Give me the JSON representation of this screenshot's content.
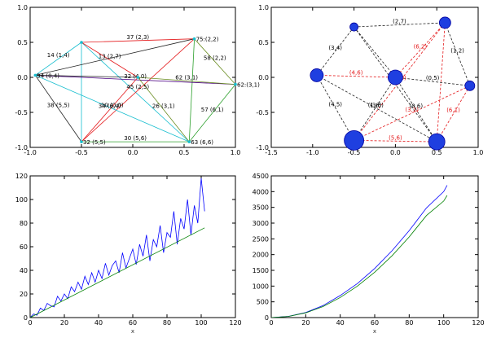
{
  "chart_data": [
    {
      "type": "graph",
      "title": "",
      "xlim": [
        -1.0,
        1.0
      ],
      "ylim": [
        -1.0,
        1.0
      ],
      "xticks": [
        "-1.0",
        "-0.5",
        "0.0",
        "0.5",
        "1.0"
      ],
      "yticks": [
        "1.0",
        "0.5",
        "0.0",
        "-0.5",
        "-1.0"
      ],
      "nodes": [
        {
          "id": 1,
          "x": -0.5,
          "y": 0.5
        },
        {
          "id": 2,
          "x": 0.6,
          "y": 0.55
        },
        {
          "id": 3,
          "x": -0.95,
          "y": 0.03
        },
        {
          "id": 4,
          "x": 1.0,
          "y": -0.1
        },
        {
          "id": 5,
          "x": -0.5,
          "y": -0.92
        },
        {
          "id": 6,
          "x": 0.55,
          "y": -0.92
        },
        {
          "id": 7,
          "x": 0.05,
          "y": 0.0
        }
      ],
      "edges": [
        {
          "from": 1,
          "to": 2,
          "color": "#e41a1c",
          "label": "37 (2,3)"
        },
        {
          "from": 1,
          "to": 3,
          "color": "#17becf",
          "label": "14 (1,4)"
        },
        {
          "from": 1,
          "to": 5,
          "color": "#17becf",
          "label": ""
        },
        {
          "from": 1,
          "to": 6,
          "color": "#17becf",
          "label": ""
        },
        {
          "from": 1,
          "to": 7,
          "color": "#e41a1c",
          "label": "13 (2,7)"
        },
        {
          "from": 2,
          "to": 3,
          "color": "#222222",
          "label": ""
        },
        {
          "from": 2,
          "to": 4,
          "color": "#6b8e23",
          "label": "58 (2,2)"
        },
        {
          "from": 2,
          "to": 5,
          "color": "#e41a1c",
          "label": "45 (2,5)"
        },
        {
          "from": 2,
          "to": 6,
          "color": "#2ca02c",
          "label": ""
        },
        {
          "from": 3,
          "to": 4,
          "color": "#4b0082",
          "label": "32 (4,0)"
        },
        {
          "from": 3,
          "to": 5,
          "color": "#222222",
          "label": "38 (5,5)"
        },
        {
          "from": 3,
          "to": 6,
          "color": "#17becf",
          "label": "10 (0,0)"
        },
        {
          "from": 3,
          "to": 7,
          "color": "#222222",
          "label": ""
        },
        {
          "from": 4,
          "to": 6,
          "color": "#2ca02c",
          "label": "57 (6,1)"
        },
        {
          "from": 4,
          "to": 7,
          "color": "#6b8e23",
          "label": "62 (3,1)"
        },
        {
          "from": 5,
          "to": 6,
          "color": "#2ca02c",
          "label": "30 (5,6)"
        },
        {
          "from": 5,
          "to": 7,
          "color": "#e41a1c",
          "label": "34 (6,4)"
        },
        {
          "from": 6,
          "to": 7,
          "color": "#6b8e23",
          "label": "26 (3,1)"
        }
      ],
      "node_labels": [
        {
          "node": 2,
          "text": "75:(2,2)"
        },
        {
          "node": 3,
          "text": "34 (0,4)"
        },
        {
          "node": 4,
          "text": "62:(3,1)"
        },
        {
          "node": 5,
          "text": "32 (5,5)"
        },
        {
          "node": 6,
          "text": "63 (6,6)"
        }
      ]
    },
    {
      "type": "graph",
      "title": "",
      "xlim": [
        -1.5,
        1.0
      ],
      "ylim": [
        -1.0,
        1.0
      ],
      "xticks": [
        "-1.5",
        "-1.0",
        "-0.5",
        "0.0",
        "0.5",
        "1.0"
      ],
      "yticks": [
        "1.0",
        "0.5",
        "0.0",
        "-0.5",
        "-1.0"
      ],
      "nodes": [
        {
          "id": 1,
          "x": -0.5,
          "y": 0.72,
          "r": 5
        },
        {
          "id": 2,
          "x": 0.6,
          "y": 0.78,
          "r": 7
        },
        {
          "id": 3,
          "x": -0.95,
          "y": 0.03,
          "r": 8
        },
        {
          "id": 4,
          "x": 0.0,
          "y": 0.0,
          "r": 9
        },
        {
          "id": 5,
          "x": 0.9,
          "y": -0.12,
          "r": 6
        },
        {
          "id": 6,
          "x": -0.5,
          "y": -0.9,
          "r": 12
        },
        {
          "id": 7,
          "x": 0.5,
          "y": -0.92,
          "r": 10
        }
      ],
      "edges": [
        {
          "from": 1,
          "to": 2,
          "color": "#222222",
          "label": "(2,7)"
        },
        {
          "from": 1,
          "to": 3,
          "color": "#222222",
          "label": "(3,4)"
        },
        {
          "from": 1,
          "to": 4,
          "color": "#222222",
          "label": ""
        },
        {
          "from": 1,
          "to": 7,
          "color": "#222222",
          "label": ""
        },
        {
          "from": 2,
          "to": 4,
          "color": "#e41a1c",
          "label": "(6,2)"
        },
        {
          "from": 2,
          "to": 5,
          "color": "#222222",
          "label": "(1,2)"
        },
        {
          "from": 2,
          "to": 6,
          "color": "#e41a1c",
          "label": "(2,0)"
        },
        {
          "from": 2,
          "to": 7,
          "color": "#e41a1c",
          "label": ""
        },
        {
          "from": 3,
          "to": 4,
          "color": "#e41a1c",
          "label": "(4,6)"
        },
        {
          "from": 3,
          "to": 6,
          "color": "#222222",
          "label": "(4,5)"
        },
        {
          "from": 3,
          "to": 7,
          "color": "#222222",
          "label": "(3,6)"
        },
        {
          "from": 4,
          "to": 5,
          "color": "#222222",
          "label": "(0,5)"
        },
        {
          "from": 4,
          "to": 6,
          "color": "#222222",
          "label": "(1,6)"
        },
        {
          "from": 4,
          "to": 7,
          "color": "#222222",
          "label": "(0,6)"
        },
        {
          "from": 5,
          "to": 6,
          "color": "#e41a1c",
          "label": "(3,1)"
        },
        {
          "from": 5,
          "to": 7,
          "color": "#e41a1c",
          "label": "(6,1)"
        },
        {
          "from": 6,
          "to": 7,
          "color": "#e41a1c",
          "label": "(5,6)"
        }
      ]
    },
    {
      "type": "line",
      "title": "",
      "xlabel": "x",
      "ylabel": "",
      "xlim": [
        0,
        120
      ],
      "ylim": [
        0,
        120
      ],
      "xticks": [
        0,
        20,
        40,
        60,
        80,
        100,
        120
      ],
      "yticks": [
        0,
        20,
        40,
        60,
        80,
        100,
        120
      ],
      "series": [
        {
          "name": "",
          "color": "#0000ff",
          "kind": "noisy",
          "x": [
            0,
            2,
            4,
            6,
            8,
            10,
            12,
            14,
            16,
            18,
            20,
            22,
            24,
            26,
            28,
            30,
            32,
            34,
            36,
            38,
            40,
            42,
            44,
            46,
            48,
            50,
            52,
            54,
            56,
            58,
            60,
            62,
            64,
            66,
            68,
            70,
            72,
            74,
            76,
            78,
            80,
            82,
            84,
            86,
            88,
            90,
            92,
            94,
            96,
            98,
            100,
            102
          ],
          "y": [
            0,
            3,
            2,
            8,
            6,
            12,
            10,
            9,
            18,
            14,
            20,
            16,
            26,
            22,
            30,
            24,
            35,
            28,
            38,
            30,
            40,
            33,
            46,
            36,
            44,
            48,
            38,
            55,
            42,
            50,
            58,
            45,
            62,
            52,
            70,
            48,
            66,
            60,
            78,
            55,
            72,
            68,
            90,
            62,
            84,
            75,
            100,
            70,
            95,
            80,
            118,
            90
          ]
        },
        {
          "name": "",
          "color": "#008000",
          "kind": "fit",
          "x": [
            0,
            102
          ],
          "y": [
            0,
            76
          ]
        }
      ]
    },
    {
      "type": "line",
      "title": "",
      "xlabel": "x",
      "ylabel": "",
      "xlim": [
        0,
        120
      ],
      "ylim": [
        0,
        4500
      ],
      "xticks": [
        0,
        20,
        40,
        60,
        80,
        100,
        120
      ],
      "yticks": [
        0,
        500,
        1000,
        1500,
        2000,
        2500,
        3000,
        3500,
        4000,
        4500
      ],
      "series": [
        {
          "name": "",
          "color": "#0000ff",
          "x": [
            0,
            10,
            20,
            30,
            40,
            50,
            60,
            70,
            80,
            90,
            100,
            102
          ],
          "y": [
            0,
            40,
            160,
            380,
            700,
            1080,
            1560,
            2120,
            2760,
            3480,
            4000,
            4200
          ]
        },
        {
          "name": "",
          "color": "#008000",
          "x": [
            0,
            10,
            20,
            30,
            40,
            50,
            60,
            70,
            80,
            90,
            100,
            102
          ],
          "y": [
            0,
            37,
            150,
            350,
            640,
            1000,
            1440,
            1960,
            2560,
            3240,
            3700,
            3880
          ]
        }
      ]
    }
  ]
}
